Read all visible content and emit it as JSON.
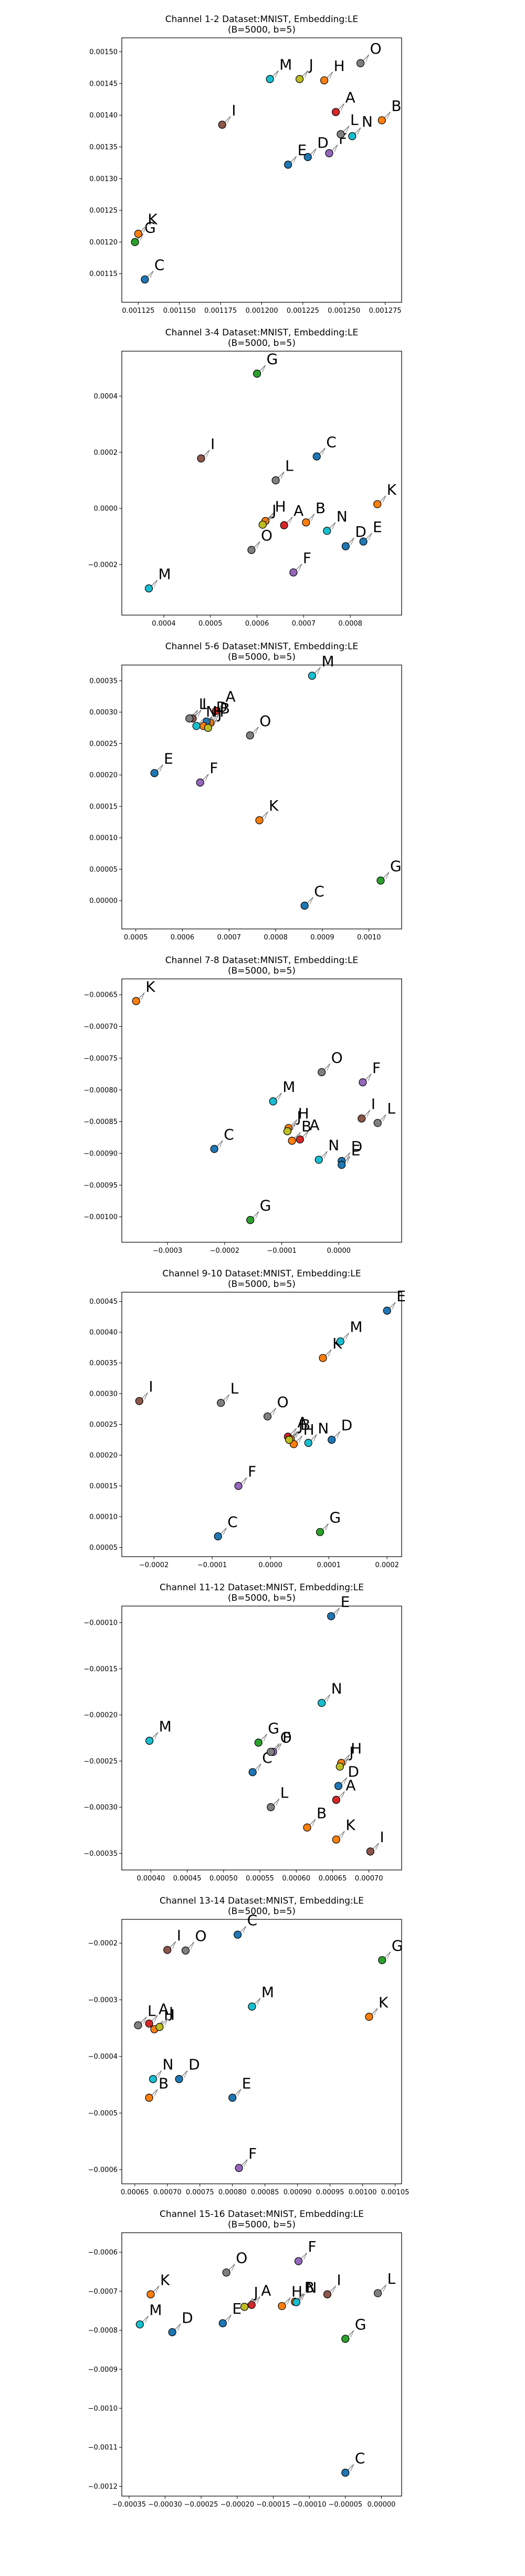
{
  "colors": {
    "A": "#d62728",
    "B": "#ff7f0e",
    "C": "#1f77b4",
    "D": "#1f77b4",
    "E": "#1f77b4",
    "F": "#9467bd",
    "G": "#2ca02c",
    "H": "#ff7f0e",
    "I": "#8c564b",
    "J": "#bcbd22",
    "K": "#ff7f0e",
    "L": "#7f7f7f",
    "M": "#17becf",
    "N": "#17becf",
    "O": "#7f7f7f"
  },
  "chart_data": [
    {
      "type": "scatter",
      "title": "Channel 1-2 Dataset:MNIST, Embedding:LE",
      "subtitle": "(B=5000, b=5)",
      "xlim": [
        0.001115,
        0.001285
      ],
      "ylim": [
        0.001105,
        0.001522
      ],
      "x_ticks": [
        "0.001125",
        "0.001150",
        "0.001175",
        "0.001200",
        "0.001225",
        "0.001250",
        "0.001275"
      ],
      "x_tick_values": [
        0.001125,
        0.00115,
        0.001175,
        0.0012,
        0.001225,
        0.00125,
        0.001275
      ],
      "y_ticks": [
        "0.00115",
        "0.00120",
        "0.00125",
        "0.00130",
        "0.00135",
        "0.00140",
        "0.00145",
        "0.00150"
      ],
      "y_tick_values": [
        0.00115,
        0.0012,
        0.00125,
        0.0013,
        0.00135,
        0.0014,
        0.00145,
        0.0015
      ],
      "points": [
        {
          "label": "A",
          "x": 0.001245,
          "y": 0.001405
        },
        {
          "label": "B",
          "x": 0.001273,
          "y": 0.001392
        },
        {
          "label": "C",
          "x": 0.001129,
          "y": 0.001141
        },
        {
          "label": "D",
          "x": 0.001228,
          "y": 0.001334
        },
        {
          "label": "E",
          "x": 0.001216,
          "y": 0.001322
        },
        {
          "label": "F",
          "x": 0.001241,
          "y": 0.00134
        },
        {
          "label": "G",
          "x": 0.001123,
          "y": 0.0012
        },
        {
          "label": "H",
          "x": 0.001238,
          "y": 0.001455
        },
        {
          "label": "I",
          "x": 0.001176,
          "y": 0.001385
        },
        {
          "label": "J",
          "x": 0.001223,
          "y": 0.001457
        },
        {
          "label": "K",
          "x": 0.001125,
          "y": 0.001213
        },
        {
          "label": "L",
          "x": 0.001248,
          "y": 0.00137
        },
        {
          "label": "M",
          "x": 0.001205,
          "y": 0.001457
        },
        {
          "label": "N",
          "x": 0.001255,
          "y": 0.001367
        },
        {
          "label": "O",
          "x": 0.00126,
          "y": 0.001482
        }
      ]
    },
    {
      "type": "scatter",
      "title": "Channel 3-4 Dataset:MNIST, Embedding:LE",
      "subtitle": "(B=5000, b=5)",
      "xlim": [
        0.00031,
        0.00091
      ],
      "ylim": [
        -0.00038,
        0.00056
      ],
      "x_ticks": [
        "0.0004",
        "0.0005",
        "0.0006",
        "0.0007",
        "0.0008"
      ],
      "x_tick_values": [
        0.0004,
        0.0005,
        0.0006,
        0.0007,
        0.0008
      ],
      "y_ticks": [
        "−0.0002",
        "0.0000",
        "0.0002",
        "0.0004"
      ],
      "y_tick_values": [
        -0.0002,
        0.0,
        0.0002,
        0.0004
      ],
      "points": [
        {
          "label": "A",
          "x": 0.000658,
          "y": -6e-05
        },
        {
          "label": "B",
          "x": 0.000705,
          "y": -5e-05
        },
        {
          "label": "C",
          "x": 0.000728,
          "y": 0.000185
        },
        {
          "label": "D",
          "x": 0.00079,
          "y": -0.000135
        },
        {
          "label": "E",
          "x": 0.000828,
          "y": -0.000118
        },
        {
          "label": "F",
          "x": 0.000678,
          "y": -0.000228
        },
        {
          "label": "G",
          "x": 0.0006,
          "y": 0.00048
        },
        {
          "label": "H",
          "x": 0.000618,
          "y": -4.5e-05
        },
        {
          "label": "I",
          "x": 0.00048,
          "y": 0.000178
        },
        {
          "label": "J",
          "x": 0.000612,
          "y": -5.8e-05
        },
        {
          "label": "K",
          "x": 0.000858,
          "y": 1.5e-05
        },
        {
          "label": "L",
          "x": 0.00064,
          "y": 0.0001
        },
        {
          "label": "M",
          "x": 0.000368,
          "y": -0.000285
        },
        {
          "label": "N",
          "x": 0.00075,
          "y": -8e-05
        },
        {
          "label": "O",
          "x": 0.000588,
          "y": -0.000148
        }
      ]
    },
    {
      "type": "scatter",
      "title": "Channel 5-6 Dataset:MNIST, Embedding:LE",
      "subtitle": "(B=5000, b=5)",
      "xlim": [
        0.00047,
        0.00107
      ],
      "ylim": [
        -4.5e-05,
        0.000375
      ],
      "x_ticks": [
        "0.0005",
        "0.0006",
        "0.0007",
        "0.0008",
        "0.0009",
        "0.0010"
      ],
      "x_tick_values": [
        0.0005,
        0.0006,
        0.0007,
        0.0008,
        0.0009,
        0.001
      ],
      "y_ticks": [
        "0.00000",
        "0.00005",
        "0.00010",
        "0.00015",
        "0.00020",
        "0.00025",
        "0.00030",
        "0.00035"
      ],
      "y_tick_values": [
        0.0,
        5e-05,
        0.0001,
        0.00015,
        0.0002,
        0.00025,
        0.0003,
        0.00035
      ],
      "points": [
        {
          "label": "A",
          "x": 0.000672,
          "y": 0.000302
        },
        {
          "label": "B",
          "x": 0.00066,
          "y": 0.000283
        },
        {
          "label": "C",
          "x": 0.000862,
          "y": -8e-06
        },
        {
          "label": "D",
          "x": 0.000652,
          "y": 0.000285
        },
        {
          "label": "E",
          "x": 0.00054,
          "y": 0.000203
        },
        {
          "label": "F",
          "x": 0.000638,
          "y": 0.000188
        },
        {
          "label": "G",
          "x": 0.001025,
          "y": 3.2e-05
        },
        {
          "label": "H",
          "x": 0.000645,
          "y": 0.000278
        },
        {
          "label": "I",
          "x": 0.000622,
          "y": 0.00029
        },
        {
          "label": "J",
          "x": 0.000655,
          "y": 0.000275
        },
        {
          "label": "K",
          "x": 0.000765,
          "y": 0.000128
        },
        {
          "label": "L",
          "x": 0.000615,
          "y": 0.00029
        },
        {
          "label": "M",
          "x": 0.000878,
          "y": 0.000358
        },
        {
          "label": "N",
          "x": 0.00063,
          "y": 0.000278
        },
        {
          "label": "O",
          "x": 0.000745,
          "y": 0.000263
        }
      ]
    },
    {
      "type": "scatter",
      "title": "Channel 7-8 Dataset:MNIST, Embedding:LE",
      "subtitle": "(B=5000, b=5)",
      "xlim": [
        -0.00038,
        0.00011
      ],
      "ylim": [
        -0.00104,
        -0.000625
      ],
      "x_ticks": [
        "−0.0003",
        "−0.0002",
        "−0.0001",
        "0.0000"
      ],
      "x_tick_values": [
        -0.0003,
        -0.0002,
        -0.0001,
        0.0
      ],
      "y_ticks": [
        "−0.00065",
        "−0.00070",
        "−0.00075",
        "−0.00080",
        "−0.00085",
        "−0.00090",
        "−0.00095",
        "−0.00100"
      ],
      "y_tick_values": [
        -0.00065,
        -0.0007,
        -0.00075,
        -0.0008,
        -0.00085,
        -0.0009,
        -0.00095,
        -0.001
      ],
      "points": [
        {
          "label": "A",
          "x": -6.8e-05,
          "y": -0.000878
        },
        {
          "label": "B",
          "x": -8.2e-05,
          "y": -0.00088
        },
        {
          "label": "C",
          "x": -0.000218,
          "y": -0.000893
        },
        {
          "label": "D",
          "x": 5e-06,
          "y": -0.000912
        },
        {
          "label": "E",
          "x": 5e-06,
          "y": -0.000918
        },
        {
          "label": "F",
          "x": 4.2e-05,
          "y": -0.000788
        },
        {
          "label": "G",
          "x": -0.000155,
          "y": -0.001005
        },
        {
          "label": "H",
          "x": -8.8e-05,
          "y": -0.00086
        },
        {
          "label": "I",
          "x": 4e-05,
          "y": -0.000845
        },
        {
          "label": "J",
          "x": -9e-05,
          "y": -0.000865
        },
        {
          "label": "K",
          "x": -0.000355,
          "y": -0.00066
        },
        {
          "label": "L",
          "x": 6.8e-05,
          "y": -0.000852
        },
        {
          "label": "M",
          "x": -0.000115,
          "y": -0.000818
        },
        {
          "label": "N",
          "x": -3.5e-05,
          "y": -0.00091
        },
        {
          "label": "O",
          "x": -3e-05,
          "y": -0.000772
        }
      ]
    },
    {
      "type": "scatter",
      "title": "Channel 9-10 Dataset:MNIST, Embedding:LE",
      "subtitle": "(B=5000, b=5)",
      "xlim": [
        -0.000255,
        0.000225
      ],
      "ylim": [
        3.5e-05,
        0.000465
      ],
      "x_ticks": [
        "−0.0002",
        "−0.0001",
        "0.0000",
        "0.0001",
        "0.0002"
      ],
      "x_tick_values": [
        -0.0002,
        -0.0001,
        0.0,
        0.0001,
        0.0002
      ],
      "y_ticks": [
        "0.00005",
        "0.00010",
        "0.00015",
        "0.00020",
        "0.00025",
        "0.00030",
        "0.00035",
        "0.00040",
        "0.00045"
      ],
      "y_tick_values": [
        5e-05,
        0.0001,
        0.00015,
        0.0002,
        0.00025,
        0.0003,
        0.00035,
        0.0004,
        0.00045
      ],
      "points": [
        {
          "label": "A",
          "x": 3e-05,
          "y": 0.00023
        },
        {
          "label": "B",
          "x": 3.5e-05,
          "y": 0.000226
        },
        {
          "label": "C",
          "x": -9e-05,
          "y": 6.8e-05
        },
        {
          "label": "D",
          "x": 0.000105,
          "y": 0.000225
        },
        {
          "label": "E",
          "x": 0.0002,
          "y": 0.000435
        },
        {
          "label": "F",
          "x": -5.5e-05,
          "y": 0.00015
        },
        {
          "label": "G",
          "x": 8.5e-05,
          "y": 7.5e-05
        },
        {
          "label": "H",
          "x": 4e-05,
          "y": 0.000218
        },
        {
          "label": "I",
          "x": -0.000225,
          "y": 0.000288
        },
        {
          "label": "J",
          "x": 3.2e-05,
          "y": 0.000225
        },
        {
          "label": "K",
          "x": 9e-05,
          "y": 0.000358
        },
        {
          "label": "L",
          "x": -8.5e-05,
          "y": 0.000285
        },
        {
          "label": "M",
          "x": 0.00012,
          "y": 0.000385
        },
        {
          "label": "N",
          "x": 6.5e-05,
          "y": 0.00022
        },
        {
          "label": "O",
          "x": -5e-06,
          "y": 0.000263
        }
      ]
    },
    {
      "type": "scatter",
      "title": "Channel 11-12 Dataset:MNIST, Embedding:LE",
      "subtitle": "(B=5000, b=5)",
      "xlim": [
        0.00036,
        0.000745
      ],
      "ylim": [
        -0.000368,
        -8.2e-05
      ],
      "x_ticks": [
        "0.00040",
        "0.00045",
        "0.00050",
        "0.00055",
        "0.00060",
        "0.00065",
        "0.00070"
      ],
      "x_tick_values": [
        0.0004,
        0.00045,
        0.0005,
        0.00055,
        0.0006,
        0.00065,
        0.0007
      ],
      "y_ticks": [
        "−0.00010",
        "−0.00015",
        "−0.00020",
        "−0.00025",
        "−0.00030",
        "−0.00035"
      ],
      "y_tick_values": [
        -0.0001,
        -0.00015,
        -0.0002,
        -0.00025,
        -0.0003,
        -0.00035
      ],
      "points": [
        {
          "label": "A",
          "x": 0.000655,
          "y": -0.000292
        },
        {
          "label": "B",
          "x": 0.000615,
          "y": -0.000322
        },
        {
          "label": "C",
          "x": 0.00054,
          "y": -0.000262
        },
        {
          "label": "D",
          "x": 0.000658,
          "y": -0.000277
        },
        {
          "label": "E",
          "x": 0.000648,
          "y": -9.3e-05
        },
        {
          "label": "F",
          "x": 0.000568,
          "y": -0.00024
        },
        {
          "label": "G",
          "x": 0.000548,
          "y": -0.00023
        },
        {
          "label": "H",
          "x": 0.000662,
          "y": -0.000252
        },
        {
          "label": "I",
          "x": 0.000702,
          "y": -0.000348
        },
        {
          "label": "J",
          "x": 0.00066,
          "y": -0.000256
        },
        {
          "label": "K",
          "x": 0.000655,
          "y": -0.000335
        },
        {
          "label": "L",
          "x": 0.000565,
          "y": -0.0003
        },
        {
          "label": "M",
          "x": 0.000398,
          "y": -0.000228
        },
        {
          "label": "N",
          "x": 0.000635,
          "y": -0.000187
        },
        {
          "label": "O",
          "x": 0.000565,
          "y": -0.00024
        }
      ]
    },
    {
      "type": "scatter",
      "title": "Channel 13-14 Dataset:MNIST, Embedding:LE",
      "subtitle": "(B=5000, b=5)",
      "xlim": [
        0.00063,
        0.00106
      ],
      "ylim": [
        -0.000625,
        -0.000158
      ],
      "x_ticks": [
        "0.00065",
        "0.00070",
        "0.00075",
        "0.00080",
        "0.00085",
        "0.00090",
        "0.00095",
        "0.00100",
        "0.00105"
      ],
      "x_tick_values": [
        0.00065,
        0.0007,
        0.00075,
        0.0008,
        0.00085,
        0.0009,
        0.00095,
        0.001,
        0.00105
      ],
      "y_ticks": [
        "−0.0002",
        "−0.0003",
        "−0.0004",
        "−0.0005",
        "−0.0006"
      ],
      "y_tick_values": [
        -0.0002,
        -0.0003,
        -0.0004,
        -0.0005,
        -0.0006
      ],
      "points": [
        {
          "label": "A",
          "x": 0.000672,
          "y": -0.000342
        },
        {
          "label": "B",
          "x": 0.000672,
          "y": -0.000473
        },
        {
          "label": "C",
          "x": 0.000808,
          "y": -0.000185
        },
        {
          "label": "D",
          "x": 0.000718,
          "y": -0.00044
        },
        {
          "label": "E",
          "x": 0.0008,
          "y": -0.000473
        },
        {
          "label": "F",
          "x": 0.00081,
          "y": -0.000597
        },
        {
          "label": "G",
          "x": 0.00103,
          "y": -0.00023
        },
        {
          "label": "H",
          "x": 0.00068,
          "y": -0.000352
        },
        {
          "label": "I",
          "x": 0.0007,
          "y": -0.000212
        },
        {
          "label": "J",
          "x": 0.000688,
          "y": -0.000348
        },
        {
          "label": "K",
          "x": 0.00101,
          "y": -0.00033
        },
        {
          "label": "L",
          "x": 0.000655,
          "y": -0.000345
        },
        {
          "label": "M",
          "x": 0.00083,
          "y": -0.000312
        },
        {
          "label": "N",
          "x": 0.000678,
          "y": -0.00044
        },
        {
          "label": "O",
          "x": 0.000728,
          "y": -0.000213
        }
      ]
    },
    {
      "type": "scatter",
      "title": "Channel 15-16 Dataset:MNIST, Embedding:LE",
      "subtitle": "(B=5000, b=5)",
      "xlim": [
        -0.00036,
        2.8e-05
      ],
      "ylim": [
        -0.001225,
        -0.00055
      ],
      "x_ticks": [
        "−0.00035",
        "−0.00030",
        "−0.00025",
        "−0.00020",
        "−0.00015",
        "−0.00010",
        "−0.00005",
        "0.00000"
      ],
      "x_tick_values": [
        -0.00035,
        -0.0003,
        -0.00025,
        -0.0002,
        -0.00015,
        -0.0001,
        -5e-05,
        0.0
      ],
      "y_ticks": [
        "−0.0006",
        "−0.0007",
        "−0.0008",
        "−0.0009",
        "−0.0010",
        "−0.0011",
        "−0.0012"
      ],
      "y_tick_values": [
        -0.0006,
        -0.0007,
        -0.0008,
        -0.0009,
        -0.001,
        -0.0011,
        -0.0012
      ],
      "points": [
        {
          "label": "A",
          "x": -0.00018,
          "y": -0.000735
        },
        {
          "label": "B",
          "x": -0.00012,
          "y": -0.000727
        },
        {
          "label": "C",
          "x": -5e-05,
          "y": -0.001165
        },
        {
          "label": "D",
          "x": -0.00029,
          "y": -0.000805
        },
        {
          "label": "E",
          "x": -0.00022,
          "y": -0.000782
        },
        {
          "label": "F",
          "x": -0.000115,
          "y": -0.000623
        },
        {
          "label": "G",
          "x": -5e-05,
          "y": -0.000822
        },
        {
          "label": "H",
          "x": -0.000138,
          "y": -0.000738
        },
        {
          "label": "I",
          "x": -7.5e-05,
          "y": -0.000708
        },
        {
          "label": "J",
          "x": -0.00019,
          "y": -0.00074
        },
        {
          "label": "K",
          "x": -0.00032,
          "y": -0.000708
        },
        {
          "label": "L",
          "x": -5e-06,
          "y": -0.000705
        },
        {
          "label": "M",
          "x": -0.000335,
          "y": -0.000785
        },
        {
          "label": "N",
          "x": -0.000118,
          "y": -0.000728
        },
        {
          "label": "O",
          "x": -0.000215,
          "y": -0.000652
        }
      ]
    }
  ]
}
